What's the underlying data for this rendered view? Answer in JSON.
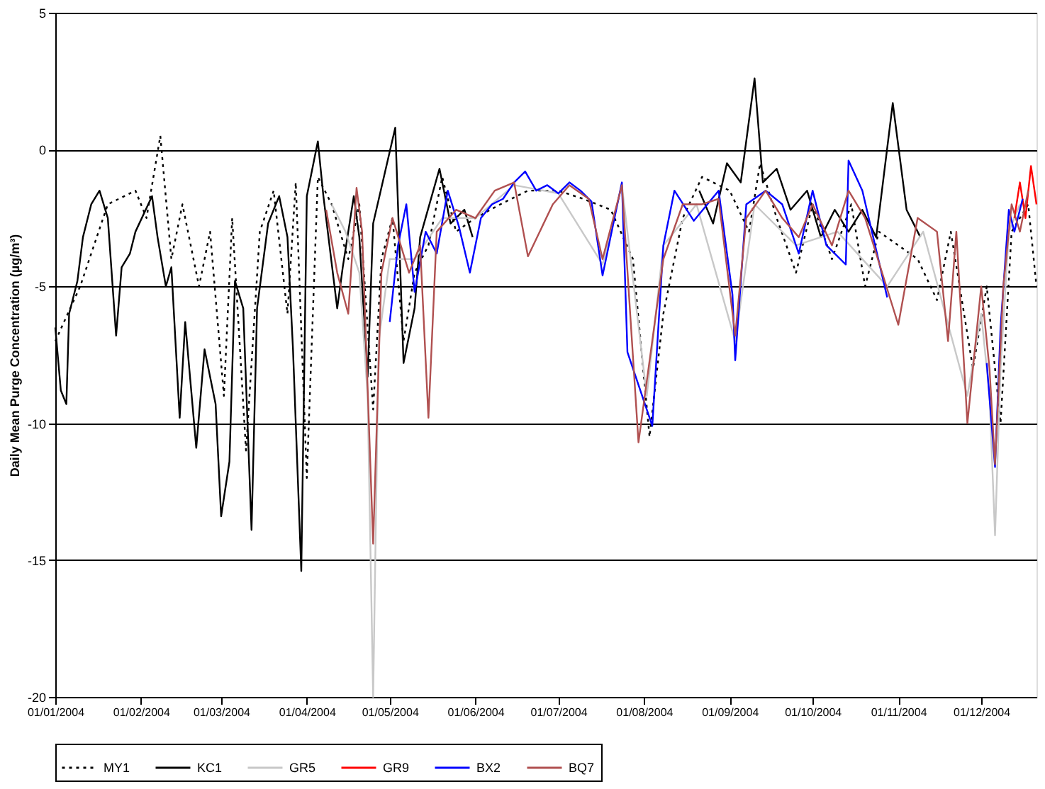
{
  "chart_data": {
    "type": "line",
    "ylabel": "Daily Mean Purge Concentration (µg/m³)",
    "xlim": [
      "2004-01-01",
      "2004-12-21"
    ],
    "xticks": [
      {
        "value": "2004-01-01",
        "label": "01/01/2004"
      },
      {
        "value": "2004-02-01",
        "label": "01/02/2004"
      },
      {
        "value": "2004-03-01",
        "label": "01/03/2004"
      },
      {
        "value": "2004-04-01",
        "label": "01/04/2004"
      },
      {
        "value": "2004-05-01",
        "label": "01/05/2004"
      },
      {
        "value": "2004-06-01",
        "label": "01/06/2004"
      },
      {
        "value": "2004-07-01",
        "label": "01/07/2004"
      },
      {
        "value": "2004-08-01",
        "label": "01/08/2004"
      },
      {
        "value": "2004-09-01",
        "label": "01/09/2004"
      },
      {
        "value": "2004-10-01",
        "label": "01/10/2004"
      },
      {
        "value": "2004-11-01",
        "label": "01/11/2004"
      },
      {
        "value": "2004-12-01",
        "label": "01/12/2004"
      }
    ],
    "ylim": [
      -20,
      5
    ],
    "yticks": [
      -20,
      -15,
      -10,
      -5,
      0,
      5
    ],
    "grid": "y",
    "legend": "bottom",
    "series": [
      {
        "name": "MY1",
        "color": "#000000",
        "line_style": "dotted",
        "x": [
          "2004-01-01",
          "2004-01-10",
          "2004-01-20",
          "2004-01-30",
          "2004-02-03",
          "2004-02-08",
          "2004-02-12",
          "2004-02-16",
          "2004-02-22",
          "2004-02-26",
          "2004-03-02",
          "2004-03-05",
          "2004-03-10",
          "2004-03-15",
          "2004-03-20",
          "2004-03-25",
          "2004-03-28",
          "2004-04-01",
          "2004-04-05",
          "2004-04-10",
          "2004-04-16",
          "2004-04-20",
          "2004-04-25",
          "2004-04-28",
          "2004-05-02",
          "2004-05-06",
          "2004-05-10",
          "2004-05-15",
          "2004-05-20",
          "2004-05-25",
          "2004-06-01",
          "2004-06-10",
          "2004-06-20",
          "2004-07-01",
          "2004-07-10",
          "2004-07-20",
          "2004-07-28",
          "2004-08-03",
          "2004-08-08",
          "2004-08-15",
          "2004-08-22",
          "2004-09-01",
          "2004-09-08",
          "2004-09-12",
          "2004-09-18",
          "2004-09-25",
          "2004-10-01",
          "2004-10-08",
          "2004-10-15",
          "2004-10-20",
          "2004-10-25",
          "2004-11-01",
          "2004-11-08",
          "2004-11-15",
          "2004-11-20",
          "2004-11-28",
          "2004-12-03",
          "2004-12-08",
          "2004-12-12",
          "2004-12-18",
          "2004-12-21"
        ],
        "values": [
          -7,
          -5,
          -2,
          -1.5,
          -2.5,
          0.5,
          -4,
          -2,
          -5,
          -3,
          -9,
          -2.5,
          -11,
          -3,
          -1.5,
          -6,
          -1.2,
          -12,
          -1,
          -2,
          -4,
          -2,
          -9.5,
          -4,
          -2.5,
          -7,
          -4.5,
          -3.5,
          -1,
          -3,
          -2.5,
          -2,
          -1.5,
          -1.5,
          -1.8,
          -2.2,
          -4,
          -10.5,
          -6,
          -2.5,
          -1,
          -1.5,
          -3,
          -0.5,
          -2.5,
          -4.5,
          -2,
          -4,
          -2,
          -5,
          -3,
          -3.5,
          -4,
          -5.5,
          -3,
          -8,
          -5,
          -10,
          -3,
          -2,
          -5
        ]
      },
      {
        "name": "KC1",
        "color": "#000000",
        "line_style": "solid",
        "x": [
          "2004-01-01",
          "2004-01-03",
          "2004-01-05",
          "2004-01-06",
          "2004-01-09",
          "2004-01-11",
          "2004-01-14",
          "2004-01-17",
          "2004-01-20",
          "2004-01-23",
          "2004-01-25",
          "2004-01-28",
          "2004-01-30",
          "2004-02-05",
          "2004-02-07",
          "2004-02-10",
          "2004-02-12",
          "2004-02-15",
          "2004-02-17",
          "2004-02-21",
          "2004-02-24",
          "2004-02-28",
          "2004-03-01",
          "2004-03-04",
          "2004-03-06",
          "2004-03-09",
          "2004-03-12",
          "2004-03-14",
          "2004-03-18",
          "2004-03-22",
          "2004-03-25",
          "2004-03-27",
          "2004-03-30",
          "2004-04-01",
          "2004-04-05",
          "2004-04-07",
          "2004-04-12",
          "2004-04-14",
          "2004-04-18",
          "2004-04-20",
          "2004-04-23",
          "2004-04-25",
          "2004-05-03",
          "2004-05-06",
          "2004-05-10",
          "2004-05-12",
          "2004-05-19",
          "2004-05-23",
          "2004-05-28",
          "2004-05-31",
          "2004-07-15",
          "2004-08-21",
          "2004-08-26",
          "2004-08-31",
          "2004-09-05",
          "2004-09-10",
          "2004-09-13",
          "2004-09-18",
          "2004-09-23",
          "2004-09-29",
          "2004-10-04",
          "2004-10-09",
          "2004-10-14",
          "2004-10-19",
          "2004-10-24",
          "2004-10-30",
          "2004-11-04",
          "2004-11-09"
        ],
        "values": [
          -6.5,
          -8.8,
          -9.3,
          -6,
          -4.8,
          -3.2,
          -2,
          -1.5,
          -2.5,
          -6.8,
          -4.3,
          -3.8,
          -3,
          -1.7,
          -3.2,
          -5,
          -4.3,
          -9.8,
          -6.3,
          -10.9,
          -7.3,
          -9.3,
          -13.4,
          -11.4,
          -4.8,
          -5.8,
          -13.9,
          -5.8,
          -2.7,
          -1.7,
          -3.2,
          -7.3,
          -15.4,
          -1.7,
          0.3,
          -1.7,
          -5.8,
          -4.3,
          -1.7,
          -3.2,
          -8.3,
          -2.7,
          0.8,
          -7.8,
          -5.8,
          -3.2,
          -0.7,
          -2.7,
          -2.2,
          -3.2,
          null,
          -1.5,
          -2.7,
          -0.5,
          -1.2,
          2.6,
          -1.2,
          -0.7,
          -2.2,
          -1.5,
          -3.2,
          -2.2,
          -3,
          -2.2,
          -3.2,
          1.7,
          -2.2,
          -3.2
        ]
      },
      {
        "name": "GR5",
        "color": "#c8c8c8",
        "line_style": "solid",
        "x": [
          "2004-04-10",
          "2004-04-15",
          "2004-04-20",
          "2004-04-23",
          "2004-04-25",
          "2004-04-27",
          "2004-05-01",
          "2004-05-10",
          "2004-05-20",
          "2004-06-01",
          "2004-06-15",
          "2004-07-01",
          "2004-07-17",
          "2004-07-24",
          "2004-08-02",
          "2004-08-08",
          "2004-08-20",
          "2004-09-03",
          "2004-09-10",
          "2004-09-25",
          "2004-10-10",
          "2004-10-28",
          "2004-11-10",
          "2004-11-26",
          "2004-12-01",
          "2004-12-04",
          "2004-12-06",
          "2004-12-08",
          "2004-12-11",
          "2004-12-15"
        ],
        "values": [
          -2,
          -3,
          -4.5,
          -9,
          -20,
          -7,
          -4,
          -4,
          -2.5,
          -2.5,
          -1.3,
          -1.6,
          -4.2,
          -1.3,
          -9,
          -3.5,
          -2,
          -7,
          -2,
          -3.5,
          -3,
          -5,
          -3,
          -9,
          -6,
          -9,
          -14.1,
          -8,
          -3,
          -2
        ]
      },
      {
        "name": "GR9",
        "color": "#ff0000",
        "line_style": "solid",
        "x": [
          "2004-12-13",
          "2004-12-15",
          "2004-12-17",
          "2004-12-19",
          "2004-12-21"
        ],
        "values": [
          -2.5,
          -1.2,
          -2.5,
          -0.6,
          -2
        ]
      },
      {
        "name": "BX2",
        "color": "#0000ff",
        "line_style": "solid",
        "x": [
          "2004-05-01",
          "2004-05-04",
          "2004-05-07",
          "2004-05-10",
          "2004-05-14",
          "2004-05-18",
          "2004-05-22",
          "2004-05-26",
          "2004-05-30",
          "2004-06-03",
          "2004-06-07",
          "2004-06-11",
          "2004-06-15",
          "2004-06-19",
          "2004-06-23",
          "2004-06-27",
          "2004-07-01",
          "2004-07-05",
          "2004-07-09",
          "2004-07-13",
          "2004-07-17",
          "2004-07-24",
          "2004-07-26",
          "2004-08-04",
          "2004-08-08",
          "2004-08-12",
          "2004-08-19",
          "2004-08-28",
          "2004-09-02",
          "2004-09-03",
          "2004-09-07",
          "2004-09-14",
          "2004-09-20",
          "2004-09-26",
          "2004-10-01",
          "2004-10-06",
          "2004-10-13",
          "2004-10-14",
          "2004-10-19",
          "2004-10-28",
          "2004-11-15",
          "2004-12-03",
          "2004-12-06",
          "2004-12-08",
          "2004-12-11",
          "2004-12-13",
          "2004-12-16"
        ],
        "values": [
          -6.3,
          -3.5,
          -2,
          -5.2,
          -3,
          -3.8,
          -1.5,
          -2.8,
          -4.5,
          -2.5,
          -2,
          -1.8,
          -1.2,
          -0.8,
          -1.5,
          -1.3,
          -1.6,
          -1.2,
          -1.5,
          -1.9,
          -4.6,
          -1.2,
          -7.4,
          -10.1,
          -3.5,
          -1.5,
          -2.6,
          -1.5,
          -5.3,
          -7.7,
          -2,
          -1.5,
          -2,
          -3.8,
          -1.5,
          -3.5,
          -4.2,
          -0.4,
          -1.5,
          -5.4,
          null,
          -7.8,
          -11.6,
          -6.5,
          -2.2,
          -3,
          -1.8
        ]
      },
      {
        "name": "BQ7",
        "color": "#b05050",
        "line_style": "solid",
        "x": [
          "2004-04-08",
          "2004-04-12",
          "2004-04-16",
          "2004-04-19",
          "2004-04-21",
          "2004-04-25",
          "2004-04-28",
          "2004-05-02",
          "2004-05-08",
          "2004-05-12",
          "2004-05-15",
          "2004-05-18",
          "2004-05-25",
          "2004-06-01",
          "2004-06-08",
          "2004-06-15",
          "2004-06-20",
          "2004-06-29",
          "2004-07-05",
          "2004-07-12",
          "2004-07-17",
          "2004-07-24",
          "2004-07-30",
          "2004-08-08",
          "2004-08-15",
          "2004-08-22",
          "2004-08-28",
          "2004-09-03",
          "2004-09-07",
          "2004-09-14",
          "2004-09-20",
          "2004-09-26",
          "2004-10-01",
          "2004-10-08",
          "2004-10-14",
          "2004-10-20",
          "2004-11-01",
          "2004-11-08",
          "2004-11-15",
          "2004-11-19",
          "2004-11-22",
          "2004-11-26",
          "2004-12-01",
          "2004-12-04",
          "2004-12-06",
          "2004-12-09",
          "2004-12-12",
          "2004-12-15",
          "2004-12-18"
        ],
        "values": [
          -2.2,
          -4.5,
          -6,
          -1.4,
          -3,
          -14.4,
          -4.5,
          -2.5,
          -4.5,
          -3.5,
          -9.8,
          -3,
          -2.2,
          -2.5,
          -1.5,
          -1.2,
          -3.9,
          -2,
          -1.3,
          -1.8,
          -4,
          -1.3,
          -10.7,
          -4,
          -2,
          -2,
          -1.8,
          -6.8,
          -2.5,
          -1.5,
          -2.5,
          -3.2,
          -2,
          -3.5,
          -1.5,
          -2.5,
          -6.4,
          -2.5,
          -3,
          -7,
          -3,
          -10,
          -5,
          -8,
          -11.5,
          -5,
          -2,
          -3,
          -1.5
        ]
      }
    ]
  }
}
